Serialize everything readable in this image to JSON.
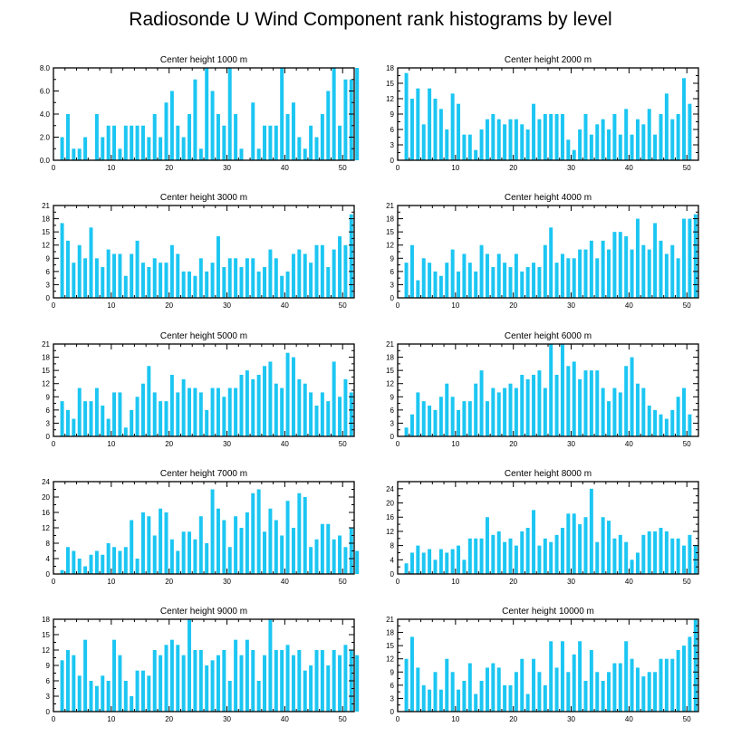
{
  "title": "Radiosonde U Wind Component rank histograms by level",
  "colors": {
    "bar": "#1cc6f2",
    "axis": "#000000",
    "background": "#ffffff"
  },
  "chart_data": [
    {
      "type": "bar",
      "title": "Center height 1000 m",
      "xlim": [
        0,
        52
      ],
      "xticks": [
        0,
        10,
        20,
        30,
        40,
        50
      ],
      "ylim": [
        0,
        8
      ],
      "yticks": [
        0,
        2,
        4,
        6,
        8
      ],
      "ytick_labels": [
        "0.0",
        "2.0",
        "4.0",
        "6.0",
        "8.0"
      ],
      "values": [
        0,
        2,
        4,
        1,
        1,
        2,
        0,
        4,
        2,
        3,
        3,
        1,
        3,
        3,
        3,
        3,
        2,
        4,
        2,
        5,
        6,
        3,
        2,
        4,
        7,
        1,
        8,
        6,
        4,
        3,
        8,
        4,
        1,
        0,
        5,
        1,
        3,
        3,
        3,
        8,
        4,
        5,
        2,
        1,
        3,
        2,
        4,
        6,
        8,
        3,
        7,
        7,
        8
      ]
    },
    {
      "type": "bar",
      "title": "Center height 2000 m",
      "xlim": [
        0,
        52
      ],
      "xticks": [
        0,
        10,
        20,
        30,
        40,
        50
      ],
      "ylim": [
        0,
        18
      ],
      "yticks": [
        0,
        3,
        6,
        9,
        12,
        15,
        18
      ],
      "ytick_labels": [
        "0",
        "3",
        "6",
        "9",
        "12",
        "15",
        "18"
      ],
      "values": [
        0,
        17,
        12,
        14,
        7,
        14,
        12,
        10,
        6,
        13,
        11,
        5,
        5,
        2,
        6,
        8,
        9,
        8,
        7,
        8,
        8,
        7,
        6,
        11,
        8,
        9,
        9,
        9,
        9,
        4,
        2,
        6,
        9,
        5,
        7,
        8,
        6,
        9,
        5,
        10,
        5,
        8,
        7,
        10,
        5,
        9,
        13,
        8,
        9,
        16,
        11,
        0,
        0
      ]
    },
    {
      "type": "bar",
      "title": "Center height 3000 m",
      "xlim": [
        0,
        52
      ],
      "xticks": [
        0,
        10,
        20,
        30,
        40,
        50
      ],
      "ylim": [
        0,
        21
      ],
      "yticks": [
        0,
        3,
        6,
        9,
        12,
        15,
        18,
        21
      ],
      "ytick_labels": [
        "0",
        "3",
        "6",
        "9",
        "12",
        "15",
        "18",
        "21"
      ],
      "values": [
        0,
        17,
        13,
        8,
        12,
        9,
        16,
        9,
        7,
        11,
        10,
        10,
        5,
        10,
        13,
        8,
        7,
        9,
        8,
        8,
        12,
        10,
        6,
        6,
        5,
        9,
        6,
        8,
        14,
        7,
        9,
        9,
        7,
        9,
        9,
        6,
        7,
        11,
        9,
        5,
        6,
        10,
        11,
        10,
        8,
        12,
        12,
        7,
        11,
        14,
        12,
        19,
        0
      ]
    },
    {
      "type": "bar",
      "title": "Center height 4000 m",
      "xlim": [
        0,
        52
      ],
      "xticks": [
        0,
        10,
        20,
        30,
        40,
        50
      ],
      "ylim": [
        0,
        21
      ],
      "yticks": [
        0,
        3,
        6,
        9,
        12,
        15,
        18,
        21
      ],
      "ytick_labels": [
        "0",
        "3",
        "6",
        "9",
        "12",
        "15",
        "18",
        "21"
      ],
      "values": [
        0,
        8,
        12,
        4,
        9,
        8,
        6,
        5,
        8,
        11,
        6,
        10,
        8,
        6,
        12,
        10,
        7,
        10,
        8,
        7,
        10,
        6,
        7,
        8,
        7,
        12,
        16,
        8,
        10,
        9,
        9,
        11,
        11,
        13,
        9,
        13,
        11,
        15,
        15,
        14,
        11,
        18,
        12,
        11,
        17,
        13,
        10,
        12,
        9,
        18,
        18,
        19,
        0
      ]
    },
    {
      "type": "bar",
      "title": "Center height 5000 m",
      "xlim": [
        0,
        52
      ],
      "xticks": [
        0,
        10,
        20,
        30,
        40,
        50
      ],
      "ylim": [
        0,
        21
      ],
      "yticks": [
        0,
        3,
        6,
        9,
        12,
        15,
        18,
        21
      ],
      "ytick_labels": [
        "0",
        "3",
        "6",
        "9",
        "12",
        "15",
        "18",
        "21"
      ],
      "values": [
        0,
        8,
        6,
        4,
        11,
        8,
        8,
        11,
        7,
        4,
        10,
        10,
        2,
        6,
        9,
        12,
        16,
        10,
        8,
        8,
        14,
        10,
        13,
        11,
        11,
        10,
        6,
        11,
        11,
        9,
        11,
        11,
        14,
        15,
        13,
        14,
        16,
        17,
        12,
        11,
        19,
        18,
        13,
        12,
        10,
        7,
        10,
        8,
        17,
        9,
        13,
        10,
        0
      ]
    },
    {
      "type": "bar",
      "title": "Center height 6000 m",
      "xlim": [
        0,
        52
      ],
      "xticks": [
        0,
        10,
        20,
        30,
        40,
        50
      ],
      "ylim": [
        0,
        21
      ],
      "yticks": [
        0,
        3,
        6,
        9,
        12,
        15,
        18,
        21
      ],
      "ytick_labels": [
        "0",
        "3",
        "6",
        "9",
        "12",
        "15",
        "18",
        "21"
      ],
      "values": [
        0,
        2,
        5,
        10,
        8,
        7,
        6,
        9,
        12,
        9,
        6,
        8,
        8,
        12,
        15,
        8,
        11,
        10,
        11,
        12,
        11,
        14,
        13,
        14,
        15,
        11,
        21,
        14,
        21,
        16,
        17,
        13,
        15,
        15,
        15,
        11,
        8,
        11,
        10,
        16,
        18,
        12,
        11,
        7,
        6,
        5,
        4,
        6,
        9,
        11,
        5,
        0,
        0
      ]
    },
    {
      "type": "bar",
      "title": "Center height 7000 m",
      "xlim": [
        0,
        52
      ],
      "xticks": [
        0,
        10,
        20,
        30,
        40,
        50
      ],
      "ylim": [
        0,
        24
      ],
      "yticks": [
        0,
        4,
        8,
        12,
        16,
        20,
        24
      ],
      "ytick_labels": [
        "0",
        "4",
        "8",
        "12",
        "16",
        "20",
        "24"
      ],
      "values": [
        0,
        1,
        7,
        6,
        4,
        2,
        5,
        6,
        5,
        8,
        7,
        6,
        7,
        14,
        4,
        16,
        15,
        10,
        17,
        16,
        9,
        6,
        11,
        11,
        9,
        15,
        8,
        22,
        17,
        14,
        7,
        15,
        12,
        16,
        21,
        22,
        11,
        17,
        14,
        10,
        19,
        12,
        21,
        20,
        7,
        9,
        13,
        13,
        9,
        10,
        7,
        12,
        6
      ]
    },
    {
      "type": "bar",
      "title": "Center height 8000 m",
      "xlim": [
        0,
        52
      ],
      "xticks": [
        0,
        10,
        20,
        30,
        40,
        50
      ],
      "ylim": [
        0,
        26
      ],
      "yticks": [
        0,
        4,
        8,
        12,
        16,
        20,
        24
      ],
      "ytick_labels": [
        "0",
        "4",
        "8",
        "12",
        "16",
        "20",
        "24"
      ],
      "values": [
        0,
        3,
        6,
        8,
        6,
        7,
        4,
        7,
        6,
        7,
        8,
        4,
        10,
        10,
        10,
        16,
        11,
        12,
        9,
        10,
        8,
        12,
        13,
        18,
        8,
        10,
        9,
        11,
        13,
        17,
        17,
        14,
        16,
        24,
        9,
        16,
        15,
        10,
        11,
        9,
        4,
        6,
        11,
        12,
        12,
        13,
        12,
        10,
        10,
        8,
        11,
        8,
        0
      ]
    },
    {
      "type": "bar",
      "title": "Center height 9000 m",
      "xlim": [
        0,
        52
      ],
      "xticks": [
        0,
        10,
        20,
        30,
        40,
        50
      ],
      "ylim": [
        0,
        18
      ],
      "yticks": [
        0,
        3,
        6,
        9,
        12,
        15,
        18
      ],
      "ytick_labels": [
        "0",
        "3",
        "6",
        "9",
        "12",
        "15",
        "18"
      ],
      "values": [
        0,
        10,
        12,
        11,
        7,
        14,
        6,
        5,
        7,
        6,
        14,
        11,
        6,
        3,
        8,
        8,
        7,
        12,
        11,
        13,
        14,
        13,
        11,
        18,
        12,
        12,
        9,
        10,
        11,
        12,
        6,
        14,
        11,
        14,
        12,
        6,
        11,
        18,
        12,
        12,
        13,
        11,
        12,
        8,
        9,
        12,
        12,
        9,
        12,
        11,
        13,
        12,
        11
      ]
    },
    {
      "type": "bar",
      "title": "Center height 10000 m",
      "xlim": [
        0,
        52
      ],
      "xticks": [
        0,
        10,
        20,
        30,
        40,
        50
      ],
      "ylim": [
        0,
        21
      ],
      "yticks": [
        0,
        3,
        6,
        9,
        12,
        15,
        18,
        21
      ],
      "ytick_labels": [
        "0",
        "3",
        "6",
        "9",
        "12",
        "15",
        "18",
        "21"
      ],
      "values": [
        0,
        12,
        17,
        10,
        6,
        5,
        9,
        5,
        12,
        9,
        5,
        7,
        11,
        4,
        7,
        10,
        11,
        10,
        6,
        6,
        9,
        12,
        4,
        12,
        9,
        6,
        16,
        10,
        16,
        9,
        13,
        16,
        7,
        14,
        9,
        7,
        9,
        11,
        11,
        16,
        12,
        10,
        8,
        9,
        9,
        12,
        12,
        12,
        14,
        15,
        17,
        21,
        0
      ]
    }
  ]
}
